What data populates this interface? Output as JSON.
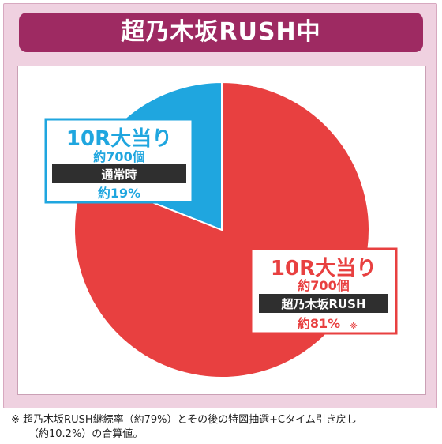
{
  "header": {
    "title": "超乃木坂RUSH中"
  },
  "colors": {
    "red": "#e84040",
    "blue": "#1fa6df",
    "dark": "#2f2f2f",
    "title_bg": "#9e2a62",
    "frame": "#efd1e0"
  },
  "chart_data": {
    "type": "pie",
    "slices": [
      {
        "key": "rush",
        "value": 81,
        "color": "#e84040",
        "heading": "10R大当り",
        "sub": "約700個",
        "tag": "超乃木坂RUSH",
        "pct": "約81%",
        "mark": "※"
      },
      {
        "key": "normal",
        "value": 19,
        "color": "#1fa6df",
        "heading": "10R大当り",
        "sub": "約700個",
        "tag": "通常時",
        "pct": "約19%",
        "mark": ""
      }
    ]
  },
  "footnote": {
    "mark": "※",
    "line1": "超乃木坂RUSH継続率（約79%）とその後の特図抽選+Cタイム引き戻し",
    "line2": "（約10.2%）の合算値。"
  }
}
